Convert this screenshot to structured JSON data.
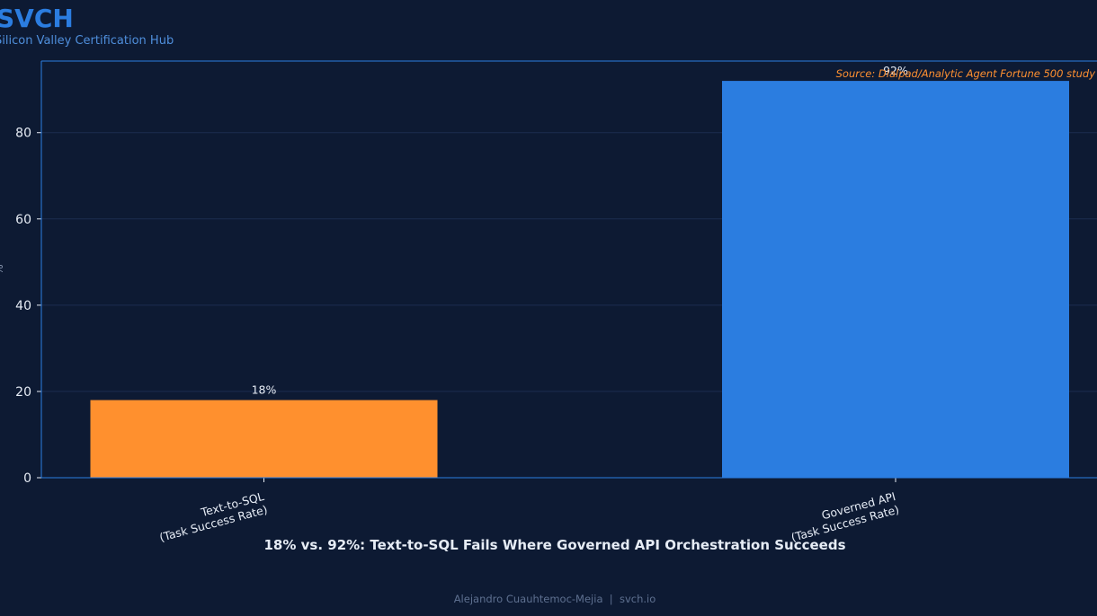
{
  "brand": {
    "logo": "SVCH",
    "subtitle": "Silicon Valley Certification Hub"
  },
  "footer": {
    "text": "Alejandro Cuauhtemoc-Mejia  |  svch.io"
  },
  "colors": {
    "background": "#0d1a33",
    "axis": "#2b7de0",
    "grid": "#1c2d50",
    "text": "#e6ecf5",
    "source": "#ff9030"
  },
  "chart_data": {
    "type": "bar",
    "title": "18% vs. 92%: Text-to-SQL Fails Where Governed API Orchestration Succeeds",
    "source_note": "Source: Dialpad/Analytic Agent Fortune 500 study",
    "ylabel": "%",
    "ylim": [
      0,
      96.6
    ],
    "yticks": [
      0,
      20,
      40,
      60,
      80
    ],
    "grid": true,
    "categories": [
      [
        "Text-to-SQL",
        "(Task Success Rate)"
      ],
      [
        "Governed API",
        "(Task Success Rate)"
      ]
    ],
    "values": [
      18,
      92
    ],
    "value_labels": [
      "18%",
      "92%"
    ],
    "bar_colors": [
      "#ff902e",
      "#2b7de0"
    ]
  }
}
